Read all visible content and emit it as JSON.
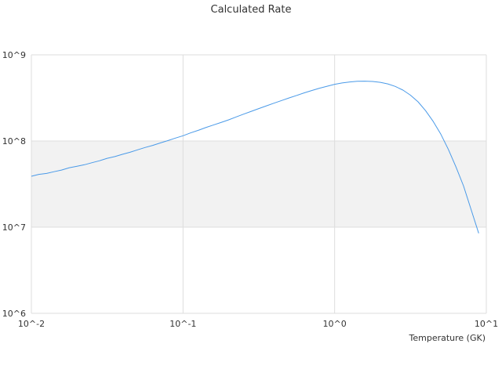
{
  "chart_data": {
    "type": "line",
    "title": "Calculated Rate",
    "xlabel": "Temperature (GK)",
    "ylabel": "",
    "x_scale": "log",
    "y_scale": "log",
    "xlim": [
      0.01,
      10
    ],
    "ylim": [
      1000000,
      1000000000
    ],
    "x_ticks": [
      "10^-2",
      "10^-1",
      "10^0",
      "10^1"
    ],
    "y_ticks": [
      "10^6",
      "10^7",
      "10^8",
      "10^9"
    ],
    "grid": true,
    "legend": "none",
    "band_color": "#f2f2f2",
    "line_color": "#4a9ae8",
    "series": [
      {
        "x": [
          0.01,
          0.0112,
          0.0126,
          0.0141,
          0.0158,
          0.0178,
          0.02,
          0.0224,
          0.0251,
          0.0282,
          0.0316,
          0.0355,
          0.0398,
          0.0447,
          0.0501,
          0.0562,
          0.0631,
          0.0708,
          0.0794,
          0.0891,
          0.1,
          0.112,
          0.126,
          0.141,
          0.158,
          0.178,
          0.2,
          0.224,
          0.251,
          0.282,
          0.316,
          0.355,
          0.398,
          0.447,
          0.501,
          0.562,
          0.631,
          0.708,
          0.794,
          0.891,
          1.0,
          1.12,
          1.26,
          1.41,
          1.58,
          1.78,
          2.0,
          2.24,
          2.51,
          2.82,
          3.16,
          3.55,
          3.98,
          4.47,
          5.01,
          5.62,
          6.31,
          7.08,
          7.94,
          8.91
        ],
        "y": [
          39000000,
          41000000,
          42000000,
          44000000,
          46000000,
          49000000,
          51000000,
          53000000,
          56000000,
          59000000,
          63000000,
          66000000,
          70000000,
          74000000,
          79000000,
          84000000,
          89000000,
          95000000,
          101000000,
          108000000,
          115000000,
          124000000,
          133000000,
          143000000,
          153000000,
          164000000,
          176000000,
          190000000,
          205000000,
          221000000,
          238000000,
          256000000,
          275000000,
          295000000,
          316000000,
          338000000,
          362000000,
          386000000,
          410000000,
          432000000,
          455000000,
          472000000,
          485000000,
          493000000,
          495000000,
          491000000,
          480000000,
          460000000,
          430000000,
          390000000,
          340000000,
          285000000,
          225000000,
          168000000,
          120000000,
          80000000,
          50000000,
          30000000,
          16000000,
          8500000
        ]
      }
    ]
  }
}
